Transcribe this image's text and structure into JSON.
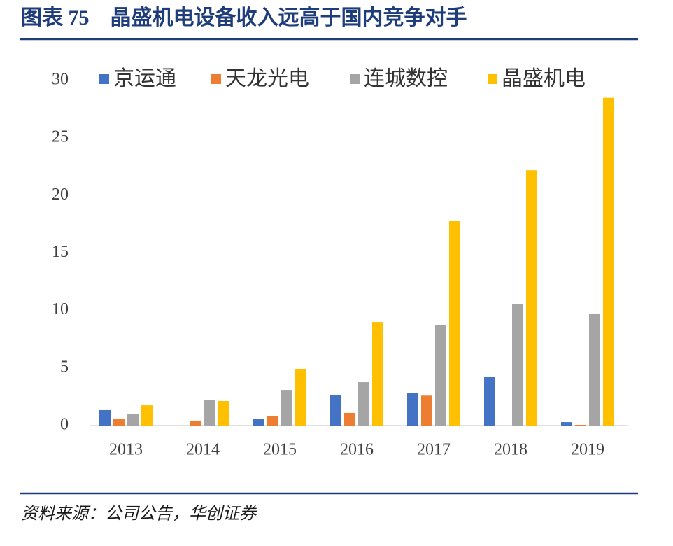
{
  "chart_data": {
    "type": "bar",
    "title": "图表 75　晶盛机电设备收入远高于国内竞争对手",
    "source": "资料来源：公司公告，华创证券",
    "categories": [
      "2013",
      "2014",
      "2015",
      "2016",
      "2017",
      "2018",
      "2019"
    ],
    "series": [
      {
        "name": "京运通",
        "color": "#4472c4",
        "values": [
          1.34,
          null,
          0.6,
          2.68,
          2.8,
          4.26,
          0.3
        ]
      },
      {
        "name": "天龙光电",
        "color": "#ed7d31",
        "values": [
          0.6,
          0.43,
          0.85,
          1.1,
          2.6,
          null,
          0.06
        ]
      },
      {
        "name": "连城数控",
        "color": "#a5a5a5",
        "values": [
          1.03,
          2.25,
          3.1,
          3.77,
          8.76,
          10.53,
          9.74
        ]
      },
      {
        "name": "晶盛机电",
        "color": "#ffc000",
        "values": [
          1.76,
          2.13,
          4.93,
          9.0,
          17.77,
          22.2,
          28.5
        ]
      }
    ],
    "ylim": [
      0,
      30
    ],
    "yticks": [
      0,
      5,
      10,
      15,
      20,
      25,
      30
    ],
    "grid": false,
    "legend": "top"
  }
}
